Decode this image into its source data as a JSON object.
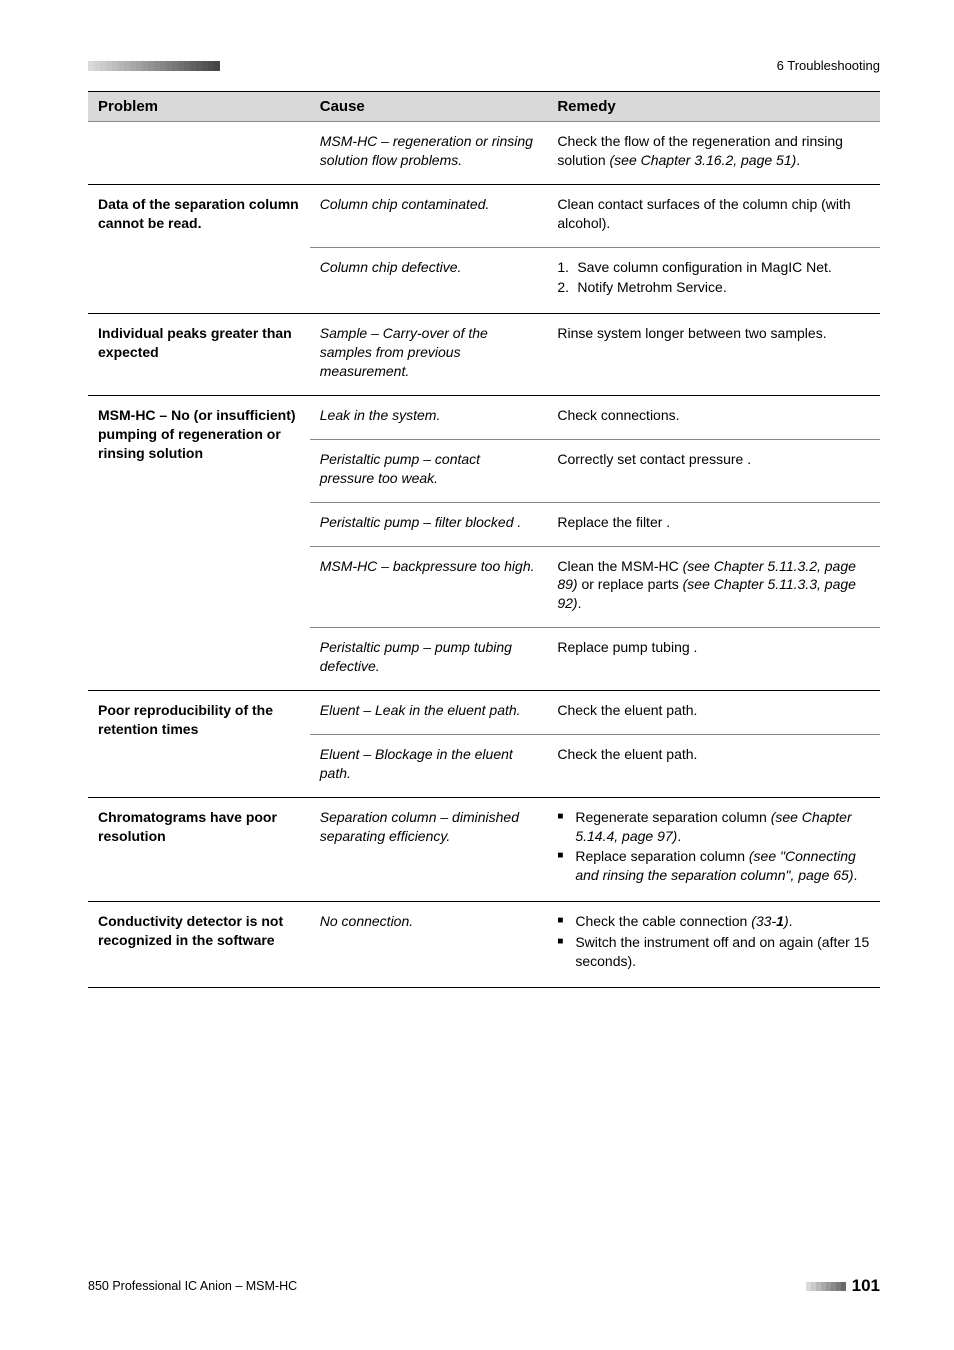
{
  "header": {
    "chapter_label": "6 Troubleshooting",
    "dash_count": 22,
    "dash_colors": [
      "#d9d9d9",
      "#d2d2d2",
      "#cbcbcb",
      "#c4c4c4",
      "#bdbdbd",
      "#b6b6b6",
      "#afafaf",
      "#a8a8a8",
      "#a1a1a1",
      "#9a9a9a",
      "#939393",
      "#8c8c8c",
      "#858585",
      "#7e7e7e",
      "#777777",
      "#707070",
      "#696969",
      "#626262",
      "#5b5b5b",
      "#545454",
      "#4d4d4d",
      "#464646"
    ]
  },
  "table": {
    "head": {
      "problem": "Problem",
      "cause": "Cause",
      "remedy": "Remedy"
    },
    "groups": [
      {
        "problem": "",
        "rows": [
          {
            "cause": "MSM-HC – regeneration or rinsing solution flow problems.",
            "remedy_plain": "Check the flow of the regeneration and rinsing solution (see Chapter 3.16.2, page 51).",
            "remedy_italic_ranges": [
              "(see Chapter 3.16.2, page 51)"
            ]
          }
        ]
      },
      {
        "problem": "Data of the separation column cannot be read.",
        "rows": [
          {
            "cause": "Column chip contaminated.",
            "remedy_plain": "Clean contact surfaces of the column chip (with alcohol)."
          },
          {
            "cause": "Column chip defective.",
            "remedy_numbered": [
              "Save column configuration in MagIC Net.",
              "Notify Metrohm Service."
            ]
          }
        ]
      },
      {
        "problem": "Individual peaks greater than expected",
        "rows": [
          {
            "cause": "Sample – Carry-over of the samples from previous measurement.",
            "remedy_plain": "Rinse system longer between two samples."
          }
        ]
      },
      {
        "problem": "MSM-HC – No (or insufficient) pumping of regeneration or rinsing solution",
        "rows": [
          {
            "cause": "Leak in the system.",
            "remedy_plain": "Check connections."
          },
          {
            "cause": "Peristaltic pump – contact pressure too weak.",
            "remedy_plain": "Correctly set contact pressure ."
          },
          {
            "cause": "Peristaltic pump – filter blocked .",
            "remedy_plain": "Replace the filter ."
          },
          {
            "cause": "MSM-HC – backpressure too high.",
            "remedy_plain": "Clean the MSM-HC (see Chapter 5.11.3.2, page 89) or replace parts (see Chapter 5.11.3.3, page 92).",
            "remedy_italic_ranges": [
              "(see Chapter 5.11.3.2, page 89)",
              "(see Chapter 5.11.3.3, page 92)"
            ]
          },
          {
            "cause": "Peristaltic pump – pump tubing defective.",
            "remedy_plain": "Replace pump tubing ."
          }
        ]
      },
      {
        "problem": "Poor reproducibility of the retention times",
        "rows": [
          {
            "cause": "Eluent – Leak in the eluent path.",
            "remedy_plain": "Check the eluent path."
          },
          {
            "cause": "Eluent – Blockage in the eluent path.",
            "remedy_plain": "Check the eluent path."
          }
        ]
      },
      {
        "problem": "Chromatograms have poor resolution",
        "rows": [
          {
            "cause": "Separation column – diminished separating efficiency.",
            "remedy_bullets": [
              {
                "text": "Regenerate separation column (see Chapter 5.14.4, page 97).",
                "italic": "(see Chapter 5.14.4, page 97)"
              },
              {
                "text": "Replace separation column (see \"Connecting and rinsing the separation column\", page 65).",
                "italic": "(see \"Connecting and rinsing the separation column\", page 65)"
              }
            ]
          }
        ]
      },
      {
        "problem": "Conductivity detector is not recognized in the software",
        "rows": [
          {
            "cause": "No connection.",
            "remedy_bullets": [
              {
                "text": "Check the cable connection (33-1).",
                "italic": "(33-",
                "bold_italic": "1",
                "italic_after": ")"
              },
              {
                "text": "Switch the instrument off and on again (after 15 seconds)."
              }
            ]
          }
        ]
      }
    ]
  },
  "footer": {
    "left": "850 Professional IC Anion – MSM-HC",
    "page": "101",
    "dash_count": 8,
    "dash_colors": [
      "#d9d9d9",
      "#c9c9c9",
      "#b9b9b9",
      "#a9a9a9",
      "#999999",
      "#898989",
      "#797979",
      "#696969"
    ]
  }
}
